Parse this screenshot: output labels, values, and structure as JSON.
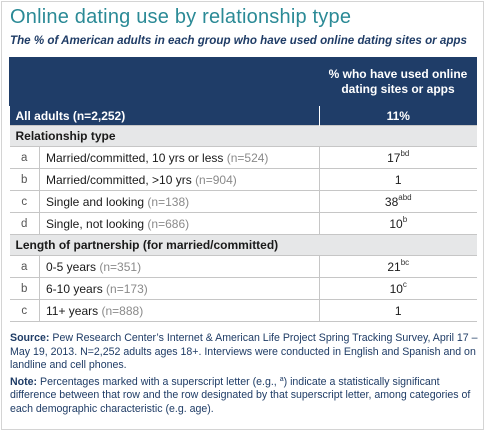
{
  "title": "Online dating use by relationship type",
  "subtitle": "The % of American adults in each group who have used online dating sites or apps",
  "colors": {
    "title": "#2b8a96",
    "subtitle": "#1f3c66",
    "header_bg": "#1f3d68",
    "section_bg": "#e6e7e8",
    "n_text": "#8a8a8a"
  },
  "chart_data": {
    "type": "table",
    "column_header": "% who have used online dating sites or apps",
    "all_adults": {
      "label": "All adults",
      "n": "(n=2,252)",
      "value": "11%"
    },
    "sections": [
      {
        "title": "Relationship type",
        "rows": [
          {
            "letter": "a",
            "label": "Married/committed, 10 yrs or less",
            "n": "(n=524)",
            "value": "17",
            "sig": "bd"
          },
          {
            "letter": "b",
            "label": "Married/committed, >10 yrs",
            "n": "(n=904)",
            "value": "1",
            "sig": ""
          },
          {
            "letter": "c",
            "label": "Single and looking",
            "n": "(n=138)",
            "value": "38",
            "sig": "abd"
          },
          {
            "letter": "d",
            "label": "Single, not looking",
            "n": "(n=686)",
            "value": "10",
            "sig": "b"
          }
        ]
      },
      {
        "title": "Length of partnership (for married/committed)",
        "rows": [
          {
            "letter": "a",
            "label": "0-5 years",
            "n": "(n=351)",
            "value": "21",
            "sig": "bc"
          },
          {
            "letter": "b",
            "label": "6-10 years",
            "n": "(n=173)",
            "value": "10",
            "sig": "c"
          },
          {
            "letter": "c",
            "label": "11+ years",
            "n": "(n=888)",
            "value": "1",
            "sig": ""
          }
        ]
      }
    ]
  },
  "notes": {
    "source_lead": "Source:",
    "source_text": "Pew Research Center’s Internet & American Life Project Spring Tracking Survey, April 17 – May 19, 2013. N=2,252 adults ages 18+. Interviews were conducted in English and Spanish and on landline and cell phones.",
    "note_lead": "Note:",
    "note_text_1": "Percentages marked with a superscript letter (e.g.,",
    "note_sup": "a",
    "note_text_2": ") indicate a statistically significant difference between that row and the row designated by that superscript letter, among categories of each demographic characteristic (e.g. age)."
  }
}
